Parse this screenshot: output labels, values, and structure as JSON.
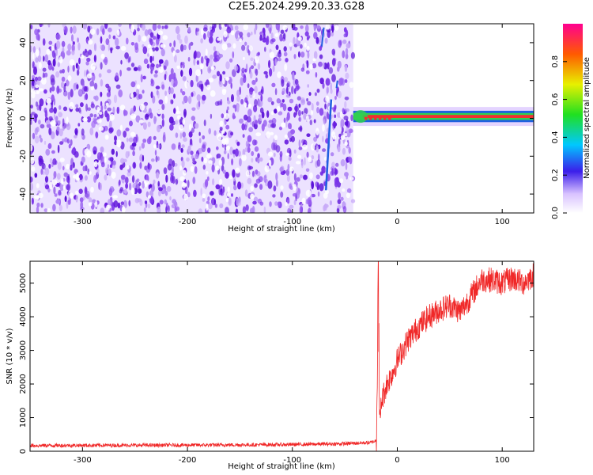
{
  "title": "C2E5.2024.299.20.33.G28",
  "colorbar_label": "Normalized spectral amplitude",
  "colors": {
    "snr_line": "#f02828",
    "noise_dark": "#6a1ee0",
    "noise_light": "#c8aaf8",
    "signal_core": "#f03030",
    "signal_green": "#30d050",
    "signal_blue": "#2060e0"
  },
  "chart_data": [
    {
      "type": "heatmap",
      "xlabel": "Height of straight line (km)",
      "ylabel": "Frequency (Hz)",
      "xlim": [
        -350,
        130
      ],
      "ylim": [
        -50,
        50
      ],
      "xticks": [
        -300,
        -200,
        -100,
        0,
        100
      ],
      "yticks": [
        40,
        20,
        0,
        -20,
        -40
      ],
      "xtick_labels": [
        "-300",
        "-200",
        "-100",
        "0",
        "100"
      ],
      "ytick_labels": [
        "40",
        "20",
        "0",
        "-20",
        "-40"
      ],
      "colorbar": {
        "range": [
          0,
          1
        ],
        "ticks": [
          0.0,
          0.2,
          0.4,
          0.6,
          0.8
        ],
        "tick_labels": [
          "0.0",
          "0.2",
          "0.4",
          "0.6",
          "0.8"
        ],
        "colormap": "rainbow"
      },
      "noise_region_x": [
        -350,
        -42
      ],
      "signal_band": {
        "x_start": -42,
        "x_end": 130,
        "center_freq": 1,
        "half_width": 3
      },
      "grid": false
    },
    {
      "type": "line",
      "xlabel": "Height of straight line (km)",
      "ylabel": "SNR (10 * v/v)",
      "xlim": [
        -350,
        130
      ],
      "ylim": [
        0,
        5650
      ],
      "xticks": [
        -300,
        -200,
        -100,
        0,
        100
      ],
      "yticks": [
        0,
        1000,
        2000,
        3000,
        4000,
        5000
      ],
      "xtick_labels": [
        "-300",
        "-200",
        "-100",
        "0",
        "100"
      ],
      "ytick_labels": [
        "0",
        "1000",
        "2000",
        "3000",
        "4000",
        "5000"
      ],
      "series": [
        {
          "x": [
            -350,
            -300,
            -250,
            -200,
            -150,
            -100,
            -50,
            -25,
            -20,
            -18,
            -17,
            -15,
            -10,
            -5,
            0,
            10,
            20,
            30,
            40,
            50,
            60,
            70,
            80,
            90,
            100,
            110,
            120,
            130
          ],
          "values": [
            170,
            175,
            178,
            182,
            190,
            200,
            225,
            260,
            320,
            5100,
            800,
            1500,
            2000,
            2300,
            2700,
            3300,
            3700,
            4000,
            4200,
            4350,
            4150,
            4600,
            5100,
            5100,
            5000,
            5150,
            5000,
            5250
          ]
        }
      ],
      "grid": false
    }
  ]
}
